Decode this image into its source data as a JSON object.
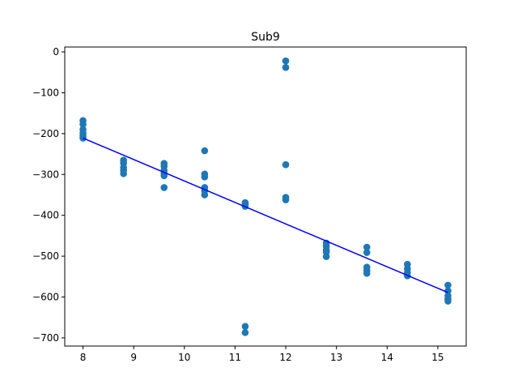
{
  "chart_data": {
    "type": "scatter",
    "title": "Sub9",
    "xlabel": "",
    "ylabel": "",
    "xlim": [
      7.64,
      15.56
    ],
    "ylim": [
      -720,
      12
    ],
    "xticks": [
      8,
      9,
      10,
      11,
      12,
      13,
      14,
      15
    ],
    "yticks": [
      0,
      -100,
      -200,
      -300,
      -400,
      -500,
      -600,
      -700
    ],
    "xtick_labels": [
      "8",
      "9",
      "10",
      "11",
      "12",
      "13",
      "14",
      "15"
    ],
    "ytick_labels": [
      "0",
      "−100",
      "−200",
      "−300",
      "−400",
      "−500",
      "−600",
      "−700"
    ],
    "grid": false,
    "legend": null,
    "series": [
      {
        "type": "scatter",
        "color": "#1f77b4",
        "points": [
          [
            8.0,
            -168
          ],
          [
            8.0,
            -177
          ],
          [
            8.0,
            -190
          ],
          [
            8.0,
            -199
          ],
          [
            8.0,
            -206
          ],
          [
            8.0,
            -211
          ],
          [
            8.8,
            -265
          ],
          [
            8.8,
            -272
          ],
          [
            8.8,
            -283
          ],
          [
            8.8,
            -290
          ],
          [
            8.8,
            -298
          ],
          [
            9.6,
            -273
          ],
          [
            9.6,
            -280
          ],
          [
            9.6,
            -290
          ],
          [
            9.6,
            -297
          ],
          [
            9.6,
            -303
          ],
          [
            9.6,
            -332
          ],
          [
            10.4,
            -242
          ],
          [
            10.4,
            -299
          ],
          [
            10.4,
            -306
          ],
          [
            10.4,
            -332
          ],
          [
            10.4,
            -340
          ],
          [
            10.4,
            -350
          ],
          [
            11.2,
            -369
          ],
          [
            11.2,
            -373
          ],
          [
            11.2,
            -378
          ],
          [
            11.2,
            -672
          ],
          [
            11.2,
            -687
          ],
          [
            12.0,
            -22
          ],
          [
            12.0,
            -38
          ],
          [
            12.0,
            -276
          ],
          [
            12.0,
            -356
          ],
          [
            12.0,
            -362
          ],
          [
            12.8,
            -468
          ],
          [
            12.8,
            -476
          ],
          [
            12.8,
            -485
          ],
          [
            12.8,
            -490
          ],
          [
            12.8,
            -501
          ],
          [
            13.6,
            -478
          ],
          [
            13.6,
            -491
          ],
          [
            13.6,
            -527
          ],
          [
            13.6,
            -535
          ],
          [
            13.6,
            -542
          ],
          [
            14.4,
            -520
          ],
          [
            14.4,
            -531
          ],
          [
            14.4,
            -540
          ],
          [
            14.4,
            -548
          ],
          [
            15.2,
            -571
          ],
          [
            15.2,
            -585
          ],
          [
            15.2,
            -597
          ],
          [
            15.2,
            -605
          ],
          [
            15.2,
            -610
          ]
        ]
      },
      {
        "type": "line",
        "color": "#0000ff",
        "points": [
          [
            8.0,
            -211
          ],
          [
            15.2,
            -589
          ]
        ]
      }
    ]
  }
}
